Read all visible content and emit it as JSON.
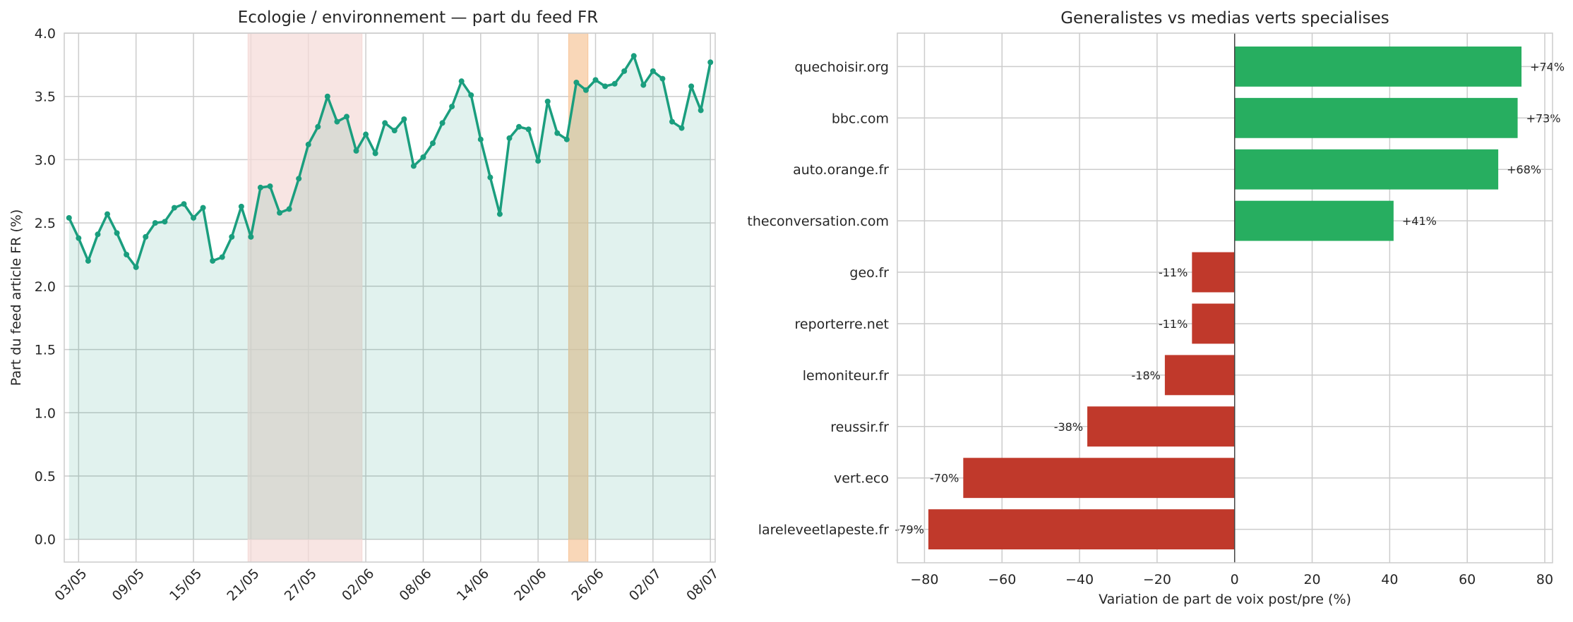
{
  "chart_data": [
    {
      "type": "line",
      "title": "Ecologie / environnement — part du feed FR",
      "xlabel": "",
      "ylabel": "Part du feed article FR (%)",
      "ylim": [
        -0.18,
        4.0
      ],
      "yticks": [
        "0.0",
        "0.5",
        "1.0",
        "1.5",
        "2.0",
        "2.5",
        "3.0",
        "3.5",
        "4.0"
      ],
      "xticks": [
        "03/05",
        "09/05",
        "15/05",
        "21/05",
        "27/05",
        "02/06",
        "08/06",
        "14/06",
        "20/06",
        "26/06",
        "02/07",
        "08/07"
      ],
      "x_start": "01/05",
      "grid": true,
      "colors": {
        "line": "#1a9e7e",
        "fill": "#1a9e7e",
        "span_1": "#e8a09a",
        "span_2": "#f0a060"
      },
      "shaded_periods": [
        {
          "from_day": 20.7,
          "to_day": 32.6,
          "color": "#f5dcda"
        },
        {
          "from_day": 54.2,
          "to_day": 56.2,
          "color": "#f7c9a0"
        }
      ],
      "series": [
        {
          "values": [
            2.54,
            2.38,
            2.2,
            2.41,
            2.57,
            2.42,
            2.25,
            2.15,
            2.39,
            2.5,
            2.51,
            2.62,
            2.65,
            2.54,
            2.62,
            2.2,
            2.23,
            2.39,
            2.63,
            2.39,
            2.78,
            2.79,
            2.58,
            2.61,
            2.85,
            3.12,
            3.26,
            3.5,
            3.3,
            3.34,
            3.07,
            3.2,
            3.05,
            3.29,
            3.23,
            3.32,
            2.95,
            3.02,
            3.13,
            3.29,
            3.42,
            3.62,
            3.51,
            3.16,
            2.86,
            2.57,
            3.17,
            3.26,
            3.24,
            2.99,
            3.46,
            3.21,
            3.16,
            3.61,
            3.55,
            3.63,
            3.58,
            3.6,
            3.7,
            3.82,
            3.59,
            3.7,
            3.64,
            3.3,
            3.25,
            3.58,
            3.39,
            3.77
          ]
        }
      ]
    },
    {
      "type": "bar",
      "orientation": "horizontal",
      "title": "Generalistes vs medias verts specialises",
      "xlabel": "Variation de part de voix post/pre (%)",
      "ylabel": "",
      "xlim": [
        -87,
        82
      ],
      "xticks": [
        "−80",
        "−60",
        "−40",
        "−20",
        "0",
        "20",
        "40",
        "60",
        "80"
      ],
      "grid": true,
      "colors": {
        "positive": "#27ae60",
        "negative": "#c0392b"
      },
      "categories": [
        "quechoisir.org",
        "bbc.com",
        "auto.orange.fr",
        "theconversation.com",
        "geo.fr",
        "reporterre.net",
        "lemoniteur.fr",
        "reussir.fr",
        "vert.eco",
        "lareleveetlapeste.fr"
      ],
      "values": [
        74,
        73,
        68,
        41,
        -11,
        -11,
        -18,
        -38,
        -70,
        -79
      ],
      "value_labels": [
        "+74%",
        "+73%",
        "+68%",
        "+41%",
        "-11%",
        "-11%",
        "-18%",
        "-38%",
        "-70%",
        "-79%"
      ]
    }
  ]
}
